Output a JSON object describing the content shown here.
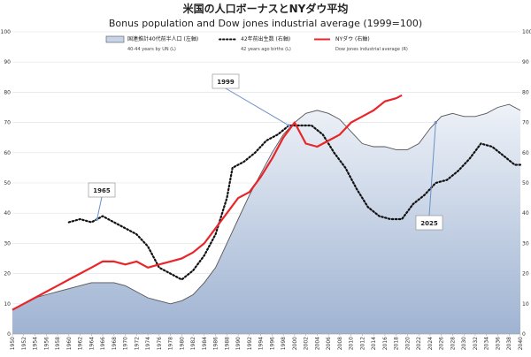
{
  "chart_data": {
    "type": "line",
    "title": "米国の人口ボーナスとNYダウ平均",
    "subtitle": "Bonus population and Dow jones industrial average (1999=100)",
    "x_ticks": [
      "1950",
      "1952",
      "1954",
      "1956",
      "1958",
      "1960",
      "1962",
      "1964",
      "1966",
      "1968",
      "1970",
      "1972",
      "1974",
      "1976",
      "1978",
      "1980",
      "1982",
      "1984",
      "1986",
      "1988",
      "1990",
      "1992",
      "1994",
      "1996",
      "1998",
      "2000",
      "2002",
      "2004",
      "2006",
      "2008",
      "2010",
      "2012",
      "2014",
      "2016",
      "2018",
      "2020",
      "2022",
      "2024",
      "2026",
      "2028",
      "2030",
      "2032",
      "2034",
      "2036",
      "2038",
      "2040"
    ],
    "left_axis": {
      "ticks": [
        "0",
        "10",
        "20",
        "30",
        "40",
        "50",
        "60",
        "70",
        "80",
        "90",
        "100"
      ],
      "ylim": [
        0,
        100
      ]
    },
    "right_axis": {
      "ticks": [
        "0",
        "10",
        "20",
        "30",
        "40",
        "50",
        "60",
        "70",
        "80",
        "90",
        "100"
      ],
      "ylim": [
        0,
        100
      ]
    },
    "legend": [
      {
        "name": "国連推計40代前半人口 (左軸)",
        "sub": "40-44 years  by UN (L)",
        "color": "#5b7aa6",
        "style": "area"
      },
      {
        "name": "42年前出生数 (右軸)",
        "sub": "42 years ago births (L)",
        "color": "#111111",
        "style": "dotted"
      },
      {
        "name": "NYダウ (右軸)",
        "sub": "Dow jones industrial average (R)",
        "color": "#e8262a",
        "style": "solid"
      }
    ],
    "series": [
      {
        "name": "国連推計40代前半人口 (左軸)",
        "x": [
          1950,
          1952,
          1954,
          1956,
          1958,
          1960,
          1962,
          1964,
          1966,
          1968,
          1970,
          1972,
          1974,
          1976,
          1978,
          1980,
          1982,
          1984,
          1986,
          1988,
          1990,
          1992,
          1994,
          1996,
          1998,
          2000,
          2002,
          2004,
          2006,
          2008,
          2010,
          2012,
          2014,
          2016,
          2018,
          2020,
          2022,
          2024,
          2026,
          2028,
          2030,
          2032,
          2034,
          2036,
          2038,
          2040
        ],
        "values": [
          8,
          10,
          12,
          13,
          14,
          15,
          16,
          17,
          17,
          17,
          16,
          14,
          12,
          11,
          10,
          11,
          13,
          17,
          22,
          30,
          38,
          46,
          53,
          60,
          66,
          70,
          73,
          74,
          73,
          71,
          67,
          63,
          62,
          62,
          61,
          61,
          63,
          68,
          72,
          73,
          72,
          72,
          73,
          75,
          76,
          74
        ]
      },
      {
        "name": "42年前出生数 (右軸)",
        "x": [
          1960,
          1962,
          1964,
          1966,
          1968,
          1970,
          1972,
          1974,
          1976,
          1978,
          1980,
          1982,
          1984,
          1986,
          1988,
          1989,
          1991,
          1993,
          1995,
          1997,
          1999,
          2001,
          2003,
          2005,
          2007,
          2009,
          2011,
          2013,
          2015,
          2017,
          2019,
          2021,
          2023,
          2025,
          2027,
          2029,
          2031,
          2033,
          2035,
          2037,
          2039,
          2040
        ],
        "values": [
          37,
          38,
          37,
          39,
          37,
          35,
          33,
          29,
          22,
          20,
          18,
          21,
          26,
          33,
          45,
          55,
          57,
          60,
          64,
          66,
          69,
          69,
          69,
          66,
          60,
          55,
          48,
          42,
          39,
          38,
          38,
          43,
          46,
          50,
          51,
          54,
          58,
          63,
          62,
          59,
          56,
          56
        ]
      },
      {
        "name": "NYダウ (右軸)",
        "x": [
          1950,
          1952,
          1954,
          1956,
          1958,
          1960,
          1962,
          1964,
          1966,
          1968,
          1970,
          1972,
          1974,
          1976,
          1978,
          1980,
          1982,
          1984,
          1986,
          1988,
          1990,
          1992,
          1994,
          1996,
          1998,
          2000,
          2002,
          2004,
          2006,
          2008,
          2010,
          2012,
          2014,
          2016,
          2018,
          2019
        ],
        "values": [
          8,
          10,
          12,
          14,
          16,
          18,
          20,
          22,
          24,
          24,
          23,
          24,
          22,
          23,
          24,
          25,
          27,
          30,
          35,
          40,
          45,
          47,
          52,
          58,
          65,
          70,
          63,
          62,
          64,
          66,
          70,
          72,
          74,
          77,
          78,
          79
        ]
      }
    ],
    "annotations": [
      {
        "label": "1999",
        "target_year": 1999
      },
      {
        "label": "1965",
        "target_year": 1965
      },
      {
        "label": "2025",
        "target_year": 2025
      }
    ]
  }
}
